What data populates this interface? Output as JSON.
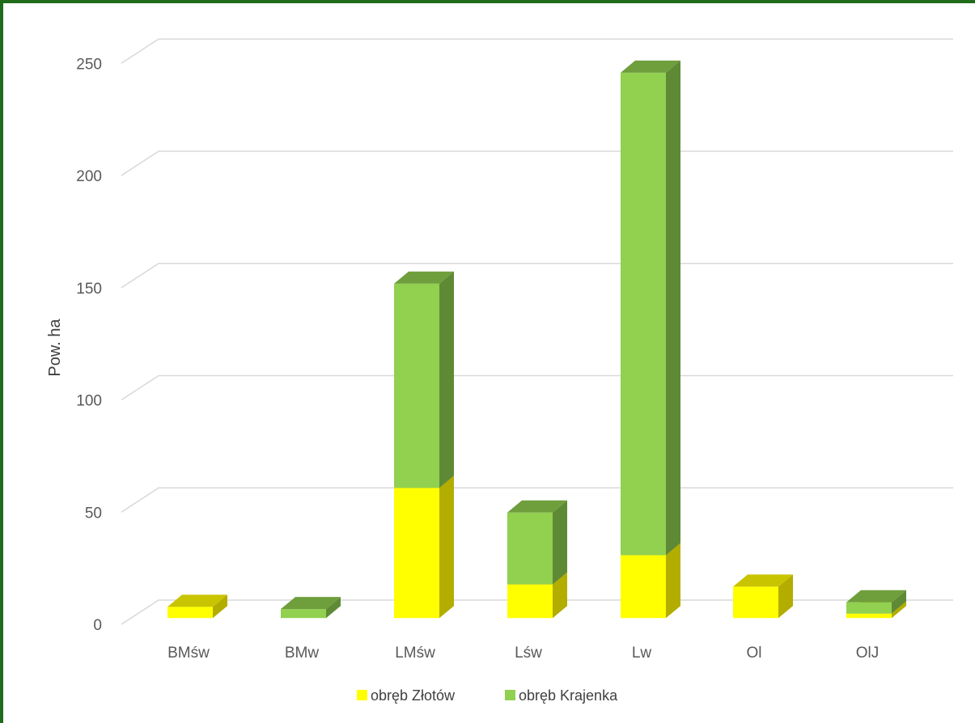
{
  "chart_data": {
    "type": "bar",
    "stacked": true,
    "three_d": true,
    "categories": [
      "BMśw",
      "BMw",
      "LMśw",
      "Lśw",
      "Lw",
      "Ol",
      "OlJ"
    ],
    "series": [
      {
        "name": "obręb Złotów",
        "values": [
          5,
          0,
          58,
          15,
          28,
          14,
          2
        ],
        "color": "#ffff00",
        "side": "#b3ad00",
        "top": "#c9c400"
      },
      {
        "name": "obręb Krajenka",
        "values": [
          0,
          4,
          91,
          32,
          215,
          0,
          5
        ],
        "color": "#92d050",
        "side": "#5f8a35",
        "top": "#6f9e3c"
      }
    ],
    "ylabel": "Pow. ha",
    "xlabel": "",
    "ylim": [
      0,
      250
    ],
    "yticks": [
      0,
      50,
      100,
      150,
      200,
      250
    ],
    "grid": true,
    "legend_position": "bottom",
    "frame_color": "#1f6b1a"
  }
}
